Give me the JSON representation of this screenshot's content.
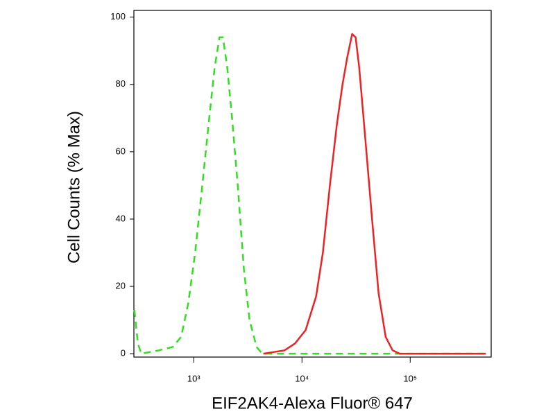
{
  "chart_data": {
    "type": "line",
    "xlabel": "EIF2AK4-Alexa Fluor® 647",
    "ylabel": "Cell Counts (% Max)",
    "xscale": "log",
    "xlim": [
      280,
      560000
    ],
    "ylim": [
      -1,
      102
    ],
    "xticks": [
      {
        "value": 1000,
        "label": "10³"
      },
      {
        "value": 10000,
        "label": "10⁴"
      },
      {
        "value": 100000,
        "label": "10⁵"
      }
    ],
    "yticks": [
      0,
      20,
      40,
      60,
      80,
      100
    ],
    "series": [
      {
        "color": "#33dd22",
        "dash": true,
        "x": [
          283,
          305,
          328,
          476,
          640,
          765,
          890,
          1030,
          1200,
          1390,
          1560,
          1730,
          1860,
          2040,
          2260,
          2550,
          2910,
          3280,
          3810,
          4290,
          10000,
          100000,
          500000
        ],
        "values": [
          13,
          3,
          0,
          1,
          2,
          5,
          15,
          30,
          50,
          70,
          85,
          94,
          94,
          85,
          70,
          50,
          25,
          10,
          2,
          0,
          0,
          0,
          0
        ]
      },
      {
        "color": "#ee2222",
        "dash": false,
        "x": [
          4400,
          6900,
          8600,
          10800,
          13500,
          15600,
          18100,
          21000,
          23700,
          26200,
          29100,
          31300,
          33800,
          38200,
          44400,
          51000,
          59300,
          68800,
          80000,
          200000,
          500000
        ],
        "values": [
          0,
          1,
          3,
          7,
          17,
          30,
          50,
          68,
          80,
          88,
          95,
          94,
          85,
          65,
          40,
          18,
          5,
          1,
          0,
          0,
          0
        ]
      }
    ]
  }
}
